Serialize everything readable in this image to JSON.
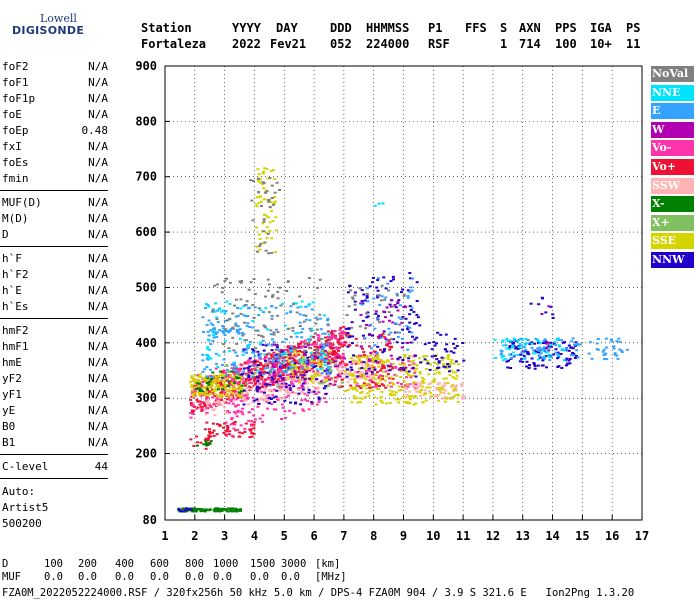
{
  "logo": {
    "line1": "Lowell",
    "line2": "DIGISONDE"
  },
  "header": {
    "labels": [
      "Station",
      "YYYY",
      "DAY",
      "DDD",
      "HHMMSS",
      "P1",
      "FFS",
      "S",
      "AXN",
      "PPS",
      "IGA",
      "PS"
    ],
    "values": [
      "Fortaleza",
      "2022",
      "Fev21",
      "052",
      "224000",
      "RSF",
      "1",
      "714",
      "100",
      "10+",
      "11"
    ]
  },
  "params": {
    "group1": [
      {
        "name": "foF2",
        "value": "N/A"
      },
      {
        "name": "foF1",
        "value": "N/A"
      },
      {
        "name": "foF1p",
        "value": "N/A"
      },
      {
        "name": "foE",
        "value": "N/A"
      },
      {
        "name": "foEp",
        "value": "0.48"
      },
      {
        "name": "fxI",
        "value": "N/A"
      },
      {
        "name": "foEs",
        "value": "N/A"
      },
      {
        "name": "fmin",
        "value": "N/A"
      }
    ],
    "group2": [
      {
        "name": "MUF(D)",
        "value": "N/A"
      },
      {
        "name": "M(D)",
        "value": "N/A"
      },
      {
        "name": "D",
        "value": "N/A"
      }
    ],
    "group3": [
      {
        "name": "h`F",
        "value": "N/A"
      },
      {
        "name": "h`F2",
        "value": "N/A"
      },
      {
        "name": "h`E",
        "value": "N/A"
      },
      {
        "name": "h`Es",
        "value": "N/A"
      }
    ],
    "group4": [
      {
        "name": "hmF2",
        "value": "N/A"
      },
      {
        "name": "hmF1",
        "value": "N/A"
      },
      {
        "name": "hmE",
        "value": "N/A"
      },
      {
        "name": "yF2",
        "value": "N/A"
      },
      {
        "name": "yF1",
        "value": "N/A"
      },
      {
        "name": "yE",
        "value": "N/A"
      },
      {
        "name": "B0",
        "value": "N/A"
      },
      {
        "name": "B1",
        "value": "N/A"
      }
    ],
    "clevel": {
      "name": "C-level",
      "value": "44"
    }
  },
  "autoscale": {
    "line1": "Auto:",
    "line2": "Artist5",
    "line3": "500200"
  },
  "bottom": {
    "d_label": "D",
    "d_values": [
      "100",
      "200",
      "400",
      "600",
      "800",
      "1000",
      "1500",
      "3000",
      "[km]"
    ],
    "muf_label": "MUF",
    "muf_values": [
      "0.0",
      "0.0",
      "0.0",
      "0.0",
      "0.0",
      "0.0",
      "0.0",
      "0.0",
      "[MHz]"
    ],
    "footer": "FZA0M_2022052224000.RSF / 320fx256h 50 kHz 5.0 km / DPS-4 FZA0M 904 / 3.9 S 321.6 E   Ion2Png 1.3.20"
  },
  "legend": [
    {
      "label": "NoVal",
      "color": "#808080"
    },
    {
      "label": "NNE",
      "color": "#00e5ff"
    },
    {
      "label": "E",
      "color": "#33a3ff"
    },
    {
      "label": "W",
      "color": "#b000b0"
    },
    {
      "label": "Vo-",
      "color": "#ff33aa"
    },
    {
      "label": "Vo+",
      "color": "#ee1133"
    },
    {
      "label": "SSW",
      "color": "#ffb3b3"
    },
    {
      "label": "X-",
      "color": "#008000"
    },
    {
      "label": "X+",
      "color": "#80c060"
    },
    {
      "label": "SSE",
      "color": "#d4d400"
    },
    {
      "label": "NNW",
      "color": "#2200cc"
    }
  ],
  "chart_data": {
    "type": "scatter",
    "title": "",
    "xlabel": "",
    "ylabel": "",
    "xlim": [
      1,
      17
    ],
    "ylim": [
      80,
      900
    ],
    "xticks": [
      1,
      2,
      3,
      4,
      5,
      6,
      7,
      8,
      9,
      10,
      11,
      12,
      13,
      14,
      15,
      16,
      17
    ],
    "yticks": [
      80,
      200,
      300,
      400,
      500,
      600,
      700,
      800,
      900
    ],
    "series": [
      {
        "name": "Vo+",
        "color": "#ee1133",
        "clusters": [
          {
            "x": [
              1.8,
              7.0
            ],
            "y": [
              270,
              330
            ],
            "slope": 20,
            "n": 520
          },
          {
            "x": [
              2.3,
              4.0
            ],
            "y": [
              230,
              260
            ],
            "slope": 0,
            "n": 50
          },
          {
            "x": [
              6.5,
              8.6
            ],
            "y": [
              320,
              420
            ],
            "slope": 0,
            "n": 120
          },
          {
            "x": [
              1.7,
              2.6
            ],
            "y": [
              210,
              235
            ],
            "slope": 0,
            "n": 14
          }
        ]
      },
      {
        "name": "Vo-",
        "color": "#ff33aa",
        "clusters": [
          {
            "x": [
              1.8,
              7.0
            ],
            "y": [
              265,
              340
            ],
            "slope": 18,
            "n": 300
          },
          {
            "x": [
              3.0,
              6.5
            ],
            "y": [
              230,
              290
            ],
            "slope": 18,
            "n": 110
          },
          {
            "x": [
              7.2,
              9.4
            ],
            "y": [
              320,
              380
            ],
            "slope": 0,
            "n": 60
          }
        ]
      },
      {
        "name": "SSW",
        "color": "#ffb3b3",
        "clusters": [
          {
            "x": [
              2.2,
              8.0
            ],
            "y": [
              260,
              300
            ],
            "slope": 14,
            "n": 180
          },
          {
            "x": [
              9.0,
              11.0
            ],
            "y": [
              300,
              330
            ],
            "slope": 0,
            "n": 60
          }
        ]
      },
      {
        "name": "SSE",
        "color": "#d4d400",
        "clusters": [
          {
            "x": [
              1.8,
              3.6
            ],
            "y": [
              305,
              345
            ],
            "slope": 0,
            "n": 130
          },
          {
            "x": [
              7.0,
              10.8
            ],
            "y": [
              290,
              380
            ],
            "slope": 0,
            "n": 260
          },
          {
            "x": [
              4.0,
              4.7
            ],
            "y": [
              560,
              720
            ],
            "slope": 0,
            "n": 55
          },
          {
            "x": [
              5.0,
              6.5
            ],
            "y": [
              330,
              390
            ],
            "slope": 0,
            "n": 80
          }
        ]
      },
      {
        "name": "X-",
        "color": "#008000",
        "clusters": [
          {
            "x": [
              1.4,
              3.5
            ],
            "y": [
              97,
              103
            ],
            "slope": 0,
            "n": 110
          },
          {
            "x": [
              2.0,
              3.6
            ],
            "y": [
              310,
              350
            ],
            "slope": 0,
            "n": 30
          },
          {
            "x": [
              1.9,
              2.5
            ],
            "y": [
              215,
              225
            ],
            "slope": 0,
            "n": 10
          }
        ]
      },
      {
        "name": "X+",
        "color": "#80c060",
        "clusters": [
          {
            "x": [
              3.0,
              7.0
            ],
            "y": [
              320,
              380
            ],
            "slope": 0,
            "n": 30
          }
        ]
      },
      {
        "name": "NNW",
        "color": "#2200cc",
        "clusters": [
          {
            "x": [
              3.5,
              6.5
            ],
            "y": [
              290,
              400
            ],
            "slope": 0,
            "n": 110
          },
          {
            "x": [
              7.0,
              9.5
            ],
            "y": [
              340,
              530
            ],
            "slope": 0,
            "n": 120
          },
          {
            "x": [
              12.4,
              14.8
            ],
            "y": [
              355,
              405
            ],
            "slope": 0,
            "n": 110
          },
          {
            "x": [
              9.5,
              11.0
            ],
            "y": [
              350,
              420
            ],
            "slope": 0,
            "n": 40
          },
          {
            "x": [
              13.2,
              14.0
            ],
            "y": [
              440,
              500
            ],
            "slope": 0,
            "n": 8
          },
          {
            "x": [
              1.4,
              1.9
            ],
            "y": [
              97,
              103
            ],
            "slope": 0,
            "n": 10
          }
        ]
      },
      {
        "name": "W",
        "color": "#b000b0",
        "clusters": [
          {
            "x": [
              4.5,
              7.0
            ],
            "y": [
              320,
              400
            ],
            "slope": 0,
            "n": 50
          },
          {
            "x": [
              7.5,
              9.2
            ],
            "y": [
              350,
              480
            ],
            "slope": 0,
            "n": 40
          },
          {
            "x": [
              13.5,
              14.0
            ],
            "y": [
              380,
              480
            ],
            "slope": 0,
            "n": 6
          }
        ]
      },
      {
        "name": "E",
        "color": "#33a3ff",
        "clusters": [
          {
            "x": [
              2.2,
              6.5
            ],
            "y": [
              340,
              470
            ],
            "slope": 0,
            "n": 180
          },
          {
            "x": [
              12.2,
              16.5
            ],
            "y": [
              370,
              410
            ],
            "slope": 0,
            "n": 90
          },
          {
            "x": [
              2.3,
              3.5
            ],
            "y": [
              415,
              430
            ],
            "slope": 0,
            "n": 25
          },
          {
            "x": [
              7.5,
              9.3
            ],
            "y": [
              380,
              520
            ],
            "slope": 0,
            "n": 40
          }
        ]
      },
      {
        "name": "NNE",
        "color": "#00e5ff",
        "clusters": [
          {
            "x": [
              2.3,
              6.5
            ],
            "y": [
              350,
              480
            ],
            "slope": 0,
            "n": 80
          },
          {
            "x": [
              12.0,
              14.5
            ],
            "y": [
              370,
              410
            ],
            "slope": 0,
            "n": 50
          },
          {
            "x": [
              7.8,
              8.3
            ],
            "y": [
              640,
              660
            ],
            "slope": 0,
            "n": 4
          }
        ]
      },
      {
        "name": "NoVal",
        "color": "#808080",
        "clusters": [
          {
            "x": [
              3.8,
              4.6
            ],
            "y": [
              560,
              700
            ],
            "slope": 0,
            "n": 25
          },
          {
            "x": [
              2.5,
              6.5
            ],
            "y": [
              380,
              520
            ],
            "slope": 0,
            "n": 100
          },
          {
            "x": [
              7.0,
              9.0
            ],
            "y": [
              400,
              520
            ],
            "slope": 0,
            "n": 30
          },
          {
            "x": [
              4.3,
              4.8
            ],
            "y": [
              640,
              700
            ],
            "slope": 0,
            "n": 8
          }
        ]
      }
    ]
  }
}
